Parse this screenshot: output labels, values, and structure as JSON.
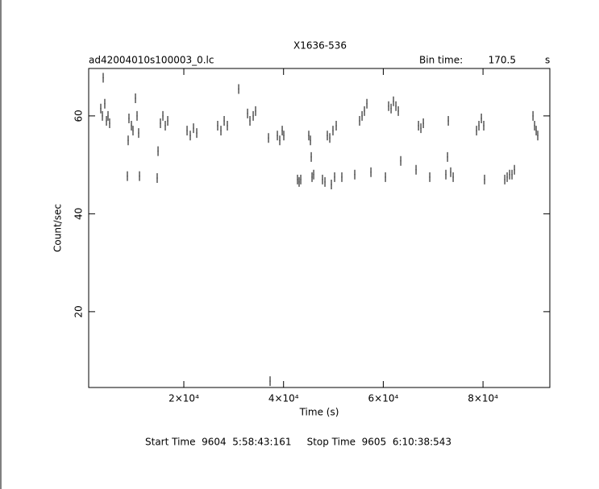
{
  "chart_data": {
    "type": "scatter",
    "title": "X1636-536",
    "subtitle": "ad42004010s100003_0.lc",
    "bin_time_label": "Bin time:",
    "bin_time_value": "170.5",
    "bin_time_unit": "s",
    "x_label": "Time (s)",
    "y_label": "Count/sec",
    "footer": "Start Time  9604  5:58:43:161     Stop Time  9605  6:10:38:543",
    "color": "#000000",
    "xlim": [
      920,
      93400
    ],
    "ylim": [
      4.5,
      69.7
    ],
    "xticks": [
      {
        "value": 20000,
        "label": "2×10⁴"
      },
      {
        "value": 40000,
        "label": "4×10⁴"
      },
      {
        "value": 60000,
        "label": "6×10⁴"
      },
      {
        "value": 80000,
        "label": "8×10⁴"
      }
    ],
    "yticks": [
      20,
      40,
      60
    ],
    "x": [
      3345,
      3670,
      3830,
      4150,
      4480,
      4800,
      5120,
      8680,
      8840,
      9000,
      9490,
      9810,
      10300,
      10620,
      10940,
      11110,
      14660,
      14830,
      15310,
      15800,
      16280,
      16770,
      20650,
      21290,
      21940,
      22590,
      26790,
      27440,
      28090,
      28730,
      31000,
      32780,
      33260,
      33910,
      34390,
      36980,
      37300,
      38760,
      39240,
      39730,
      40050,
      42800,
      43120,
      43450,
      45060,
      45390,
      45550,
      45710,
      46040,
      47810,
      48300,
      48780,
      49270,
      49590,
      49910,
      50240,
      50560,
      51690,
      54280,
      55250,
      55740,
      56220,
      56710,
      57520,
      60430,
      61070,
      61560,
      62040,
      62530,
      63010,
      63500,
      66570,
      67060,
      67540,
      68030,
      69320,
      72550,
      72880,
      73040,
      73520,
      74010,
      78700,
      79180,
      79670,
      80150,
      80310,
      84360,
      84840,
      85330,
      85810,
      86300,
      90020,
      90340,
      90660,
      90980
    ],
    "values": [
      61.5,
      60,
      67.8,
      62.5,
      59,
      60,
      58.5,
      47.7,
      55,
      59.5,
      58,
      57,
      63.6,
      60,
      56.5,
      47.7,
      47.3,
      52.8,
      58.5,
      60,
      58,
      59,
      57,
      56,
      57.5,
      56.5,
      58,
      57,
      59,
      58,
      65.5,
      60.5,
      59,
      60,
      61,
      55.5,
      5.8,
      56,
      55,
      57,
      56,
      47,
      46.5,
      47,
      56,
      55,
      51.6,
      47.5,
      48,
      47,
      46.5,
      56,
      55.5,
      46,
      57,
      47.5,
      58,
      47.5,
      48,
      59,
      60,
      61,
      62.5,
      48.5,
      47.5,
      62,
      61.5,
      63,
      62,
      61,
      50.8,
      49,
      58,
      57.5,
      58.5,
      47.5,
      48,
      51.6,
      59,
      48.5,
      47.5,
      57,
      58,
      59.5,
      58,
      47,
      47,
      47.5,
      48,
      48,
      49,
      60,
      58,
      57,
      56
    ]
  }
}
